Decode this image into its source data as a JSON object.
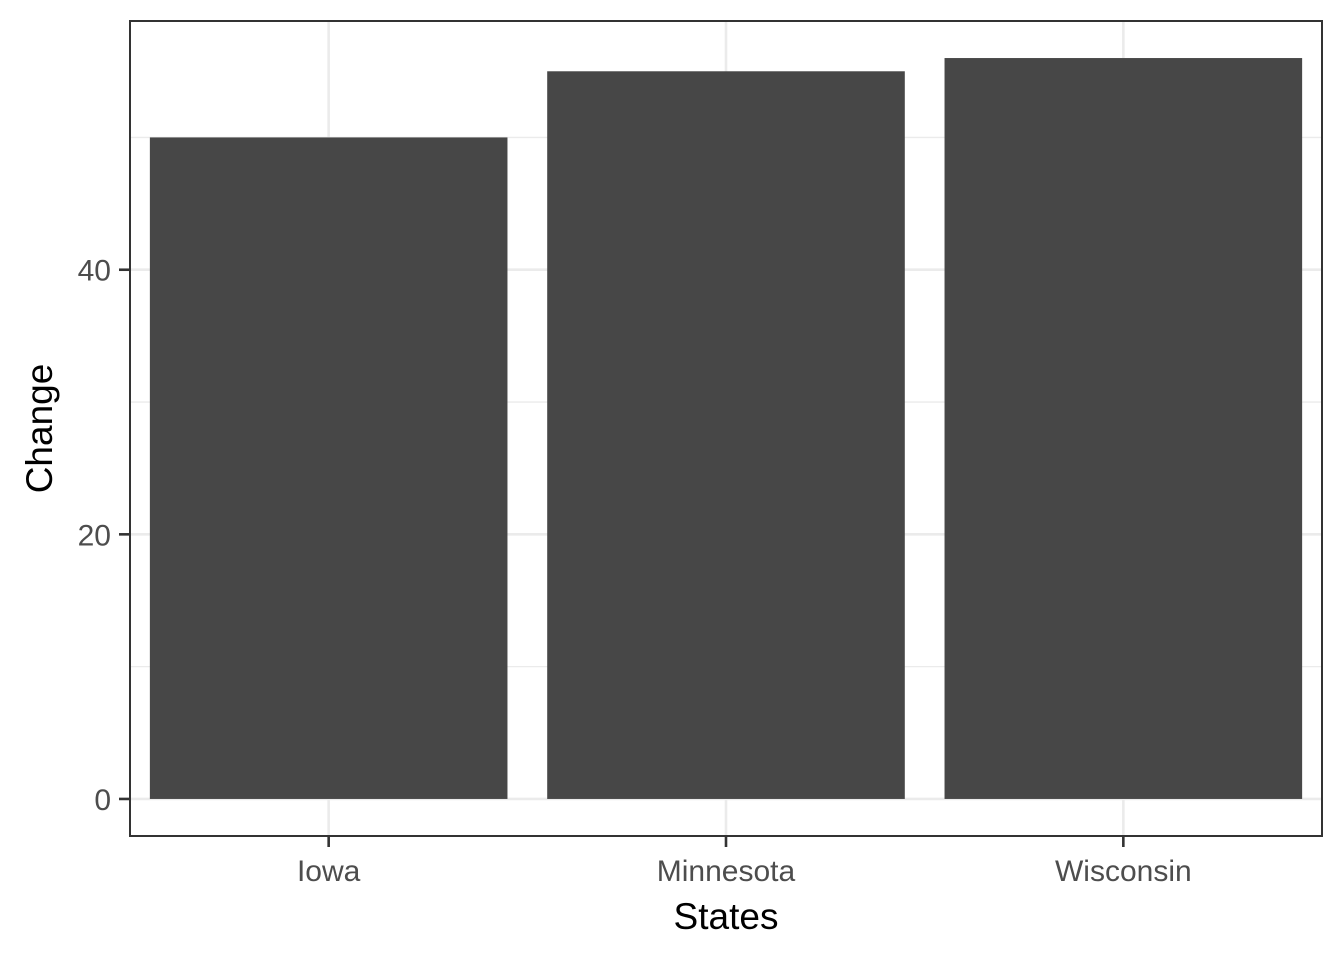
{
  "chart_data": {
    "type": "bar",
    "categories": [
      "Iowa",
      "Minnesota",
      "Wisconsin"
    ],
    "values": [
      50,
      55,
      56
    ],
    "title": "",
    "xlabel": "States",
    "ylabel": "Change",
    "ylim": [
      -2.8,
      58.8
    ],
    "y_ticks": [
      0,
      20,
      40
    ],
    "y_minor_ticks": [
      10,
      30,
      50
    ],
    "grid": true,
    "theme": "bw",
    "bar_color": "#474747",
    "grid_color": "#ebebeb",
    "panel_border_color": "#333333"
  }
}
